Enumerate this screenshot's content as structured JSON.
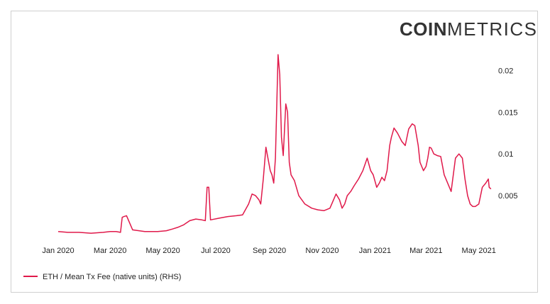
{
  "branding": {
    "logo_strong": "COIN",
    "logo_light": "METRICS"
  },
  "colors": {
    "series": "#e0194a",
    "text": "#222222",
    "frame": "#cfcfcf"
  },
  "chart_data": {
    "type": "line",
    "title": "",
    "xlabel": "",
    "ylabel": "",
    "x_tick_labels": [
      "Jan 2020",
      "Mar 2020",
      "May 2020",
      "Jul 2020",
      "Sep 2020",
      "Nov 2020",
      "Jan 2021",
      "Mar 2021",
      "May 2021"
    ],
    "x_tick_dates": [
      "2020-01-01",
      "2020-03-01",
      "2020-05-01",
      "2020-07-01",
      "2020-09-01",
      "2020-11-01",
      "2021-01-01",
      "2021-03-01",
      "2021-05-01"
    ],
    "y_axis_side": "right",
    "y_tick_labels": [
      "0.005",
      "0.01",
      "0.015",
      "0.02"
    ],
    "y_tick_values": [
      0.005,
      0.01,
      0.015,
      0.02
    ],
    "ylim": [
      0,
      0.0225
    ],
    "xlim": [
      "2020-01-01",
      "2021-05-16"
    ],
    "grid": false,
    "legend_position": "bottom-left",
    "series": [
      {
        "name": "ETH / Mean Tx Fee (native units) (RHS)",
        "color": "#e0194a",
        "x": [
          "2020-01-01",
          "2020-01-12",
          "2020-01-25",
          "2020-02-08",
          "2020-02-22",
          "2020-03-01",
          "2020-03-08",
          "2020-03-13",
          "2020-03-15",
          "2020-03-17",
          "2020-03-20",
          "2020-03-27",
          "2020-04-10",
          "2020-04-25",
          "2020-05-05",
          "2020-05-12",
          "2020-05-18",
          "2020-05-25",
          "2020-06-01",
          "2020-06-08",
          "2020-06-15",
          "2020-06-19",
          "2020-06-21",
          "2020-06-23",
          "2020-06-25",
          "2020-07-05",
          "2020-07-15",
          "2020-07-25",
          "2020-08-01",
          "2020-08-08",
          "2020-08-12",
          "2020-08-16",
          "2020-08-20",
          "2020-08-22",
          "2020-08-25",
          "2020-08-28",
          "2020-09-02",
          "2020-09-04",
          "2020-09-06",
          "2020-09-08",
          "2020-09-11",
          "2020-09-13",
          "2020-09-15",
          "2020-09-17",
          "2020-09-20",
          "2020-09-22",
          "2020-09-24",
          "2020-09-26",
          "2020-09-30",
          "2020-10-05",
          "2020-10-12",
          "2020-10-20",
          "2020-10-27",
          "2020-11-03",
          "2020-11-10",
          "2020-11-17",
          "2020-11-21",
          "2020-11-24",
          "2020-11-27",
          "2020-11-30",
          "2020-12-04",
          "2020-12-08",
          "2020-12-13",
          "2020-12-18",
          "2020-12-23",
          "2020-12-27",
          "2020-12-30",
          "2021-01-03",
          "2021-01-06",
          "2021-01-09",
          "2021-01-12",
          "2021-01-15",
          "2021-01-18",
          "2021-01-20",
          "2021-01-23",
          "2021-01-27",
          "2021-02-01",
          "2021-02-05",
          "2021-02-09",
          "2021-02-13",
          "2021-02-16",
          "2021-02-20",
          "2021-02-22",
          "2021-02-26",
          "2021-03-01",
          "2021-03-03",
          "2021-03-05",
          "2021-03-07",
          "2021-03-10",
          "2021-03-14",
          "2021-03-18",
          "2021-03-22",
          "2021-03-26",
          "2021-03-30",
          "2021-04-04",
          "2021-04-08",
          "2021-04-12",
          "2021-04-15",
          "2021-04-18",
          "2021-04-21",
          "2021-04-24",
          "2021-04-27",
          "2021-05-01",
          "2021-05-05",
          "2021-05-09",
          "2021-05-12",
          "2021-05-13",
          "2021-05-15"
        ],
        "values": [
          0.0007,
          0.0006,
          0.0006,
          0.0005,
          0.0006,
          0.0007,
          0.0007,
          0.0006,
          0.0024,
          0.0025,
          0.0026,
          0.0009,
          0.0007,
          0.0007,
          0.0008,
          0.001,
          0.0012,
          0.0015,
          0.002,
          0.0022,
          0.0021,
          0.002,
          0.006,
          0.006,
          0.0021,
          0.0023,
          0.0025,
          0.0026,
          0.0027,
          0.004,
          0.0052,
          0.005,
          0.0045,
          0.004,
          0.007,
          0.0108,
          0.008,
          0.0075,
          0.0065,
          0.0095,
          0.0219,
          0.0195,
          0.012,
          0.0098,
          0.016,
          0.015,
          0.009,
          0.0075,
          0.0068,
          0.005,
          0.004,
          0.0035,
          0.0033,
          0.0032,
          0.0035,
          0.0052,
          0.0045,
          0.0035,
          0.004,
          0.005,
          0.0055,
          0.0062,
          0.007,
          0.008,
          0.0095,
          0.008,
          0.0075,
          0.006,
          0.0065,
          0.0072,
          0.0068,
          0.008,
          0.011,
          0.012,
          0.0131,
          0.0125,
          0.0115,
          0.011,
          0.013,
          0.0136,
          0.0134,
          0.011,
          0.009,
          0.008,
          0.0085,
          0.0095,
          0.0108,
          0.0107,
          0.01,
          0.0098,
          0.0097,
          0.0075,
          0.0065,
          0.0055,
          0.0095,
          0.01,
          0.0095,
          0.007,
          0.005,
          0.004,
          0.0037,
          0.0037,
          0.004,
          0.006,
          0.0065,
          0.007,
          0.006,
          0.0058
        ]
      }
    ]
  }
}
